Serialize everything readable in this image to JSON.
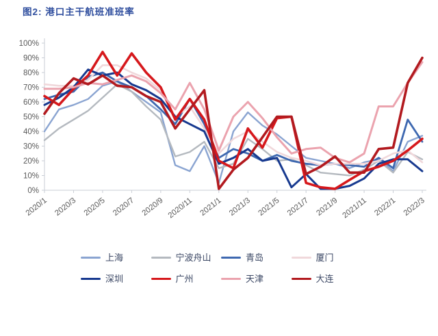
{
  "title": "图2: 港口主干航班准班率",
  "colors": {
    "title_text": "#2F4E9E",
    "axis_line": "#C9CDD5",
    "tick_label": "#595959",
    "legend_text": "#3B4764",
    "background": "#FFFFFF"
  },
  "chart_data": {
    "type": "line",
    "title": "图2: 港口主干航班准班率",
    "ylabel": "",
    "xlabel": "",
    "ylim": [
      0,
      100
    ],
    "grid": false,
    "legend_position": "bottom",
    "y_tick_labels": [
      "0%",
      "10%",
      "20%",
      "30%",
      "40%",
      "50%",
      "60%",
      "70%",
      "80%",
      "90%",
      "100%"
    ],
    "x_tick_labels": [
      "2020/1",
      "2020/3",
      "2020/5",
      "2020/7",
      "2020/9",
      "2020/11",
      "2021/1",
      "2021/3",
      "2021/5",
      "2021/7",
      "2021/9",
      "2021/11",
      "2022/1",
      "2022/3"
    ],
    "categories": [
      "2020/1",
      "2020/2",
      "2020/3",
      "2020/4",
      "2020/5",
      "2020/6",
      "2020/7",
      "2020/8",
      "2020/9",
      "2020/10",
      "2020/11",
      "2020/12",
      "2021/1",
      "2021/2",
      "2021/3",
      "2021/4",
      "2021/5",
      "2021/6",
      "2021/7",
      "2021/8",
      "2021/9",
      "2021/10",
      "2021/11",
      "2021/12",
      "2022/1",
      "2022/2",
      "2022/3"
    ],
    "series": [
      {
        "name": "上海",
        "color": "#8AA4D1",
        "values": [
          40,
          55,
          58,
          62,
          71,
          74,
          67,
          60,
          53,
          17,
          13,
          30,
          5,
          40,
          53,
          44,
          38,
          30,
          22,
          20,
          18,
          15,
          19,
          21,
          13,
          33,
          37
        ]
      },
      {
        "name": "宁波舟山",
        "color": "#B4B9BF",
        "values": [
          34,
          42,
          48,
          54,
          63,
          72,
          67,
          57,
          48,
          23,
          26,
          33,
          15,
          18,
          35,
          28,
          20,
          21,
          17,
          12,
          11,
          10,
          14,
          20,
          12,
          26,
          21
        ]
      },
      {
        "name": "青岛",
        "color": "#3E68B0",
        "values": [
          62,
          65,
          67,
          77,
          80,
          74,
          70,
          64,
          55,
          45,
          62,
          45,
          22,
          28,
          25,
          20,
          24,
          20,
          18,
          17,
          18,
          17,
          16,
          22,
          15,
          48,
          33
        ]
      },
      {
        "name": "厦门",
        "color": "#F0D8DB",
        "values": [
          72,
          71,
          71,
          75,
          85,
          85,
          80,
          76,
          68,
          50,
          57,
          42,
          25,
          35,
          40,
          33,
          26,
          22,
          20,
          17,
          18,
          18,
          18,
          20,
          25,
          27,
          19
        ]
      },
      {
        "name": "深圳",
        "color": "#17398F",
        "values": [
          58,
          63,
          70,
          82,
          78,
          80,
          72,
          68,
          62,
          50,
          45,
          40,
          18,
          22,
          28,
          20,
          22,
          2,
          11,
          1,
          1,
          3,
          8,
          18,
          21,
          21,
          13
        ]
      },
      {
        "name": "广州",
        "color": "#D6181C",
        "values": [
          64,
          58,
          69,
          78,
          94,
          78,
          93,
          80,
          70,
          48,
          62,
          48,
          20,
          15,
          42,
          29,
          49,
          50,
          5,
          2,
          1,
          7,
          13,
          16,
          20,
          27,
          35
        ]
      },
      {
        "name": "天津",
        "color": "#EBA3AE",
        "values": [
          69,
          69,
          70,
          73,
          72,
          75,
          78,
          74,
          66,
          55,
          73,
          55,
          27,
          50,
          60,
          49,
          36,
          25,
          28,
          29,
          22,
          19,
          25,
          57,
          57,
          73,
          87
        ]
      },
      {
        "name": "大连",
        "color": "#B21A1F",
        "values": [
          52,
          66,
          76,
          72,
          78,
          71,
          70,
          64,
          60,
          42,
          55,
          68,
          1,
          14,
          22,
          36,
          50,
          50,
          11,
          16,
          23,
          12,
          12,
          28,
          29,
          73,
          90
        ]
      }
    ]
  }
}
